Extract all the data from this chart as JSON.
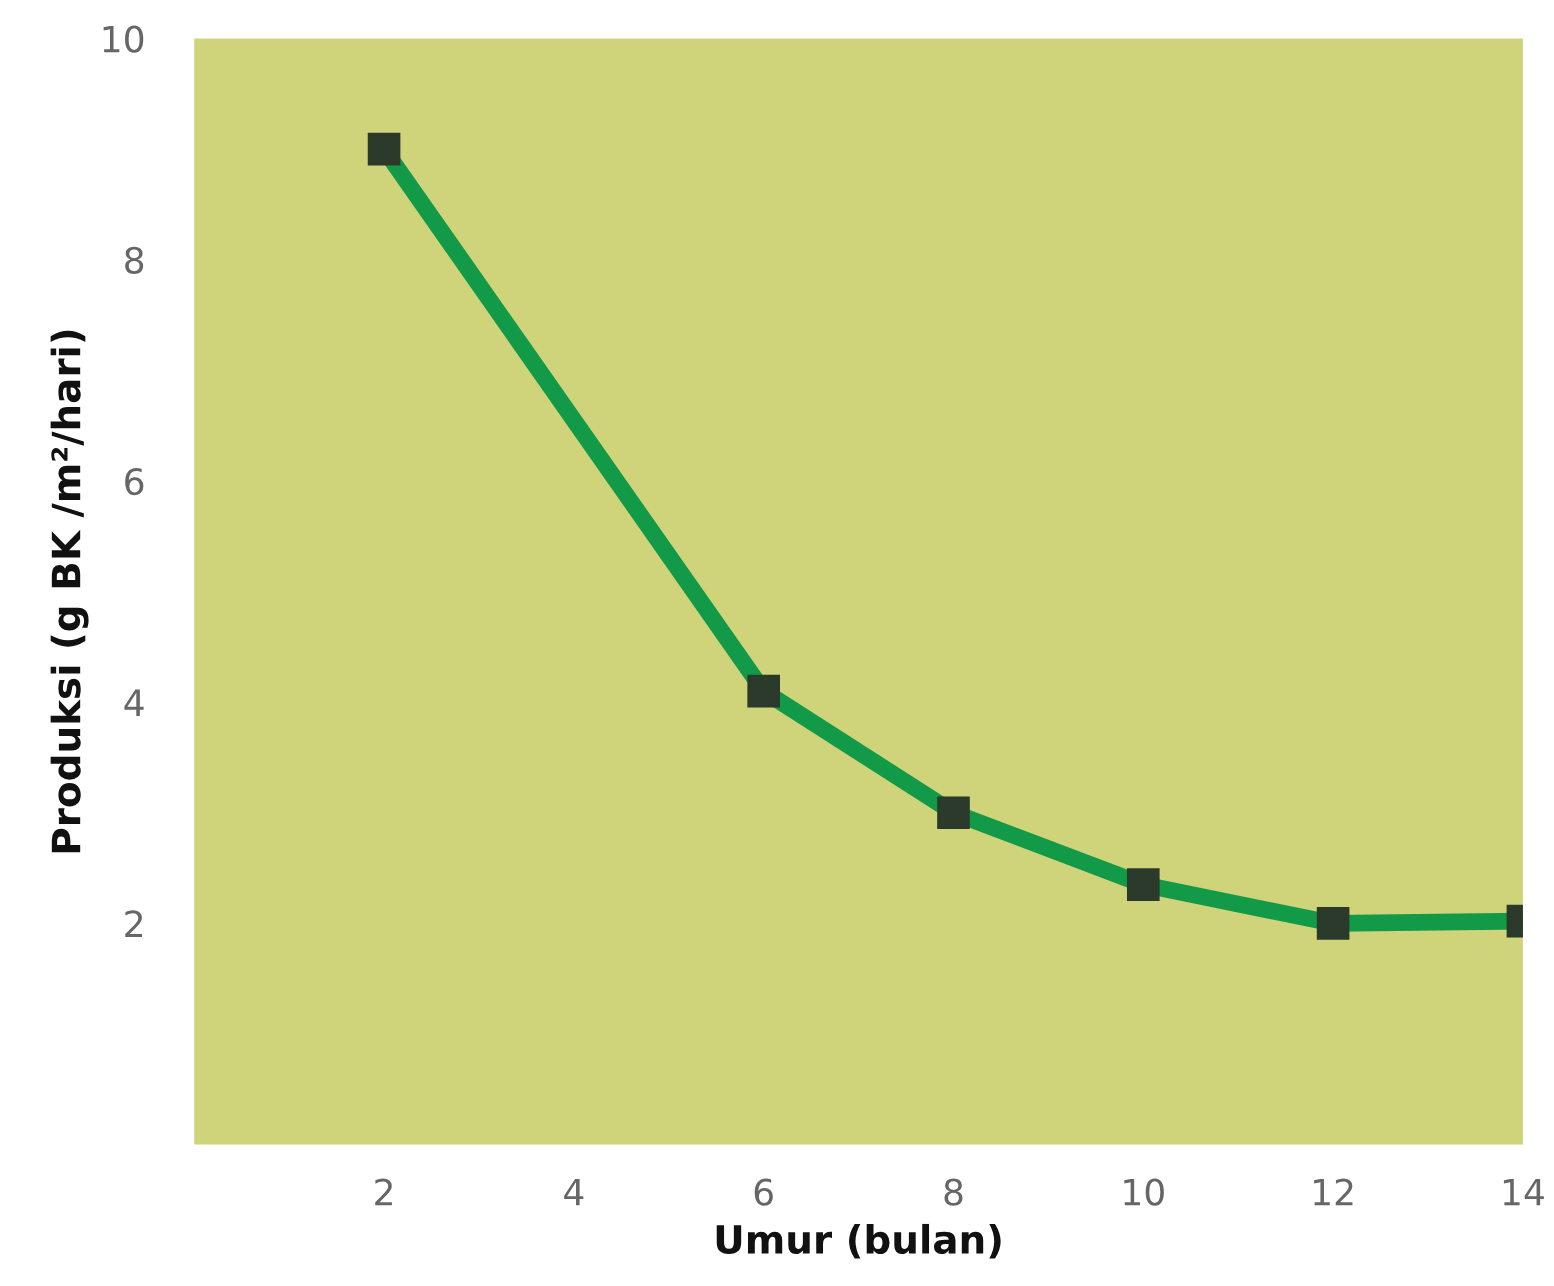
{
  "chart_data": {
    "type": "line",
    "xlabel": "Umur (bulan)",
    "ylabel": "Produksi (g BK /m²/hari)",
    "x": [
      2,
      6,
      8,
      10,
      12,
      14
    ],
    "series": [
      {
        "color": "#139a48",
        "values": [
          9.0,
          4.1,
          3.0,
          2.35,
          2.0,
          2.02
        ]
      }
    ],
    "xlim": [
      0,
      14
    ],
    "xticks": [
      2,
      4,
      6,
      8,
      10,
      12,
      14
    ],
    "ylim": [
      0,
      10
    ],
    "yticks": [
      2,
      4,
      6,
      8,
      10
    ],
    "grid": false,
    "marker": "square",
    "line_style": "solid"
  }
}
